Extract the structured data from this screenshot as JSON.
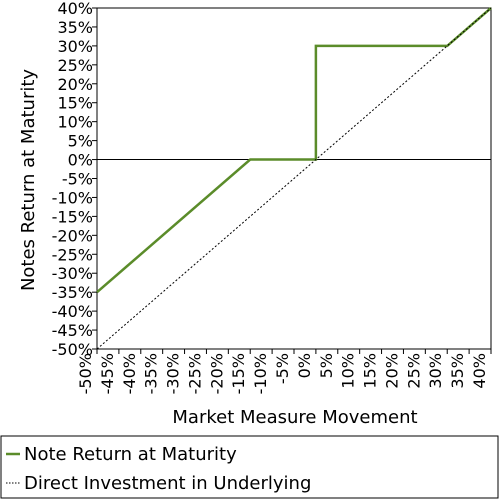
{
  "chart_data": {
    "type": "line",
    "xlabel": "Market Measure Movement",
    "ylabel": "Notes Return at Maturity",
    "xlim": [
      -50,
      40
    ],
    "ylim": [
      -50,
      40
    ],
    "x_ticks": [
      -50,
      -45,
      -40,
      -35,
      -30,
      -25,
      -20,
      -15,
      -10,
      -5,
      0,
      5,
      10,
      15,
      20,
      25,
      30,
      35,
      40
    ],
    "x_tick_labels": [
      "-50%",
      "-45%",
      "-40%",
      "-35%",
      "-30%",
      "-25%",
      "-20%",
      "-15%",
      "-10%",
      "-5%",
      "0%",
      "5%",
      "10%",
      "15%",
      "20%",
      "25%",
      "30%",
      "35%",
      "40%"
    ],
    "y_ticks": [
      40,
      35,
      30,
      25,
      20,
      15,
      10,
      5,
      0,
      -5,
      -10,
      -15,
      -20,
      -25,
      -30,
      -35,
      -40,
      -45,
      -50
    ],
    "y_tick_labels": [
      "40%",
      "35%",
      "30%",
      "25%",
      "20%",
      "15%",
      "10%",
      "5%",
      "0%",
      "-5%",
      "-10%",
      "-15%",
      "-20%",
      "-25%",
      "-30%",
      "-35%",
      "-40%",
      "-45%",
      "-50%"
    ],
    "grid": false,
    "legend_position": "bottom",
    "series": [
      {
        "name": "Note Return at Maturity",
        "color": "#5b8c2a",
        "style": "solid",
        "x": [
          -50,
          -15,
          0,
          0,
          30,
          40
        ],
        "y": [
          -35,
          0,
          0,
          30,
          30,
          40
        ]
      },
      {
        "name": "Direct Investment in Underlying",
        "color": "#000000",
        "style": "dotted",
        "x": [
          -50,
          40
        ],
        "y": [
          -50,
          40
        ]
      }
    ]
  }
}
